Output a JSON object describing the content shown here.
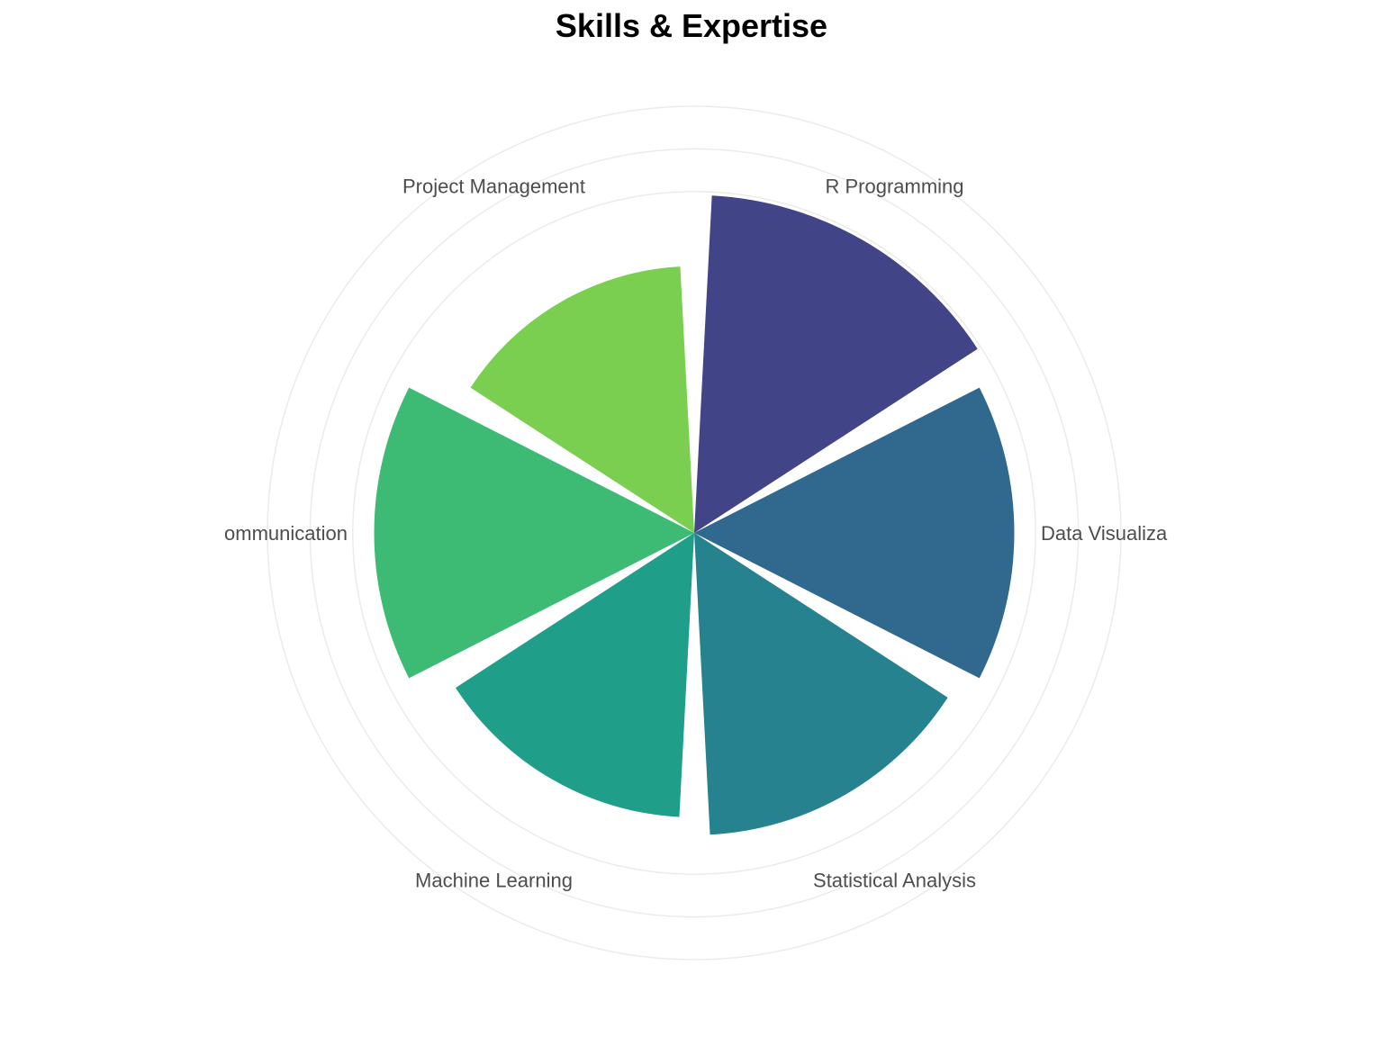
{
  "chart_data": {
    "type": "bar",
    "polar": true,
    "title": "Skills & Expertise",
    "xlabel": "",
    "ylabel": "",
    "categories": [
      "R Programming",
      "Data Visualiza",
      "Statistical Analysis",
      "Machine Learning",
      "ommunication",
      "Project Management"
    ],
    "values": [
      95,
      90,
      85,
      80,
      90,
      75
    ],
    "ylim": [
      0,
      120
    ],
    "grid": true,
    "legend": "none",
    "colors": [
      "#414487",
      "#31688E",
      "#26828E",
      "#1F9E89",
      "#3DBB74",
      "#7ACF51"
    ]
  }
}
